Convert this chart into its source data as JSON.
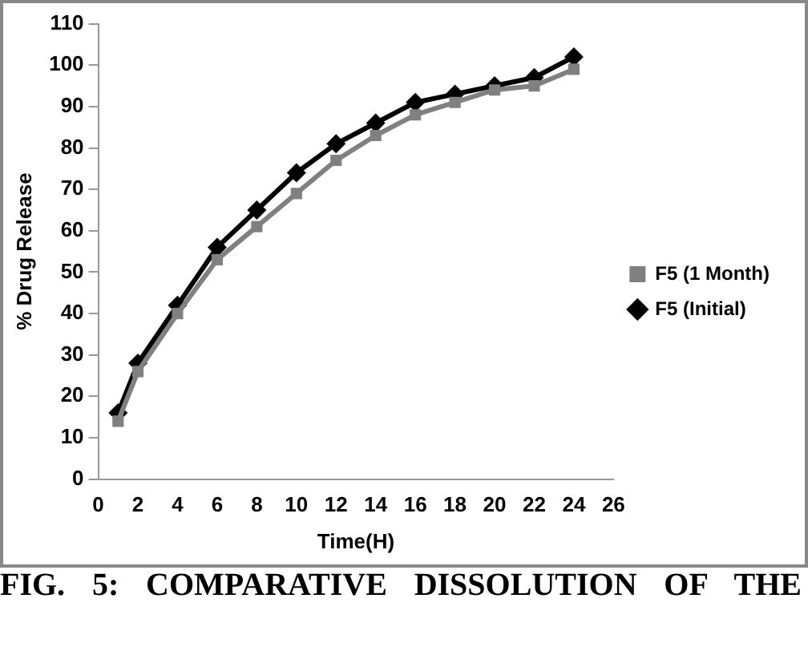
{
  "chart_data": {
    "type": "line",
    "xlabel": "Time(H)",
    "ylabel": "% Drug Release",
    "x": [
      1,
      2,
      4,
      6,
      8,
      10,
      12,
      14,
      16,
      18,
      20,
      22,
      24
    ],
    "series": [
      {
        "name": "F5 (Initial)",
        "color": "#000000",
        "marker": "diamond",
        "values": [
          16,
          28,
          42,
          56,
          65,
          74,
          81,
          86,
          91,
          93,
          95,
          97,
          102
        ]
      },
      {
        "name": "F5 (1 Month)",
        "color": "#808080",
        "marker": "square",
        "values": [
          14,
          26,
          40,
          53,
          61,
          69,
          77,
          83,
          88,
          91,
          94,
          95,
          99
        ]
      }
    ],
    "xlim": [
      0,
      26
    ],
    "xticks": [
      0,
      2,
      4,
      6,
      8,
      10,
      12,
      14,
      16,
      18,
      20,
      22,
      24,
      26
    ],
    "ylim": [
      0,
      110
    ],
    "yticks": [
      0,
      10,
      20,
      30,
      40,
      50,
      60,
      70,
      80,
      90,
      100,
      110
    ],
    "grid": false,
    "legend": "right",
    "line_style": "solid",
    "annotations": [
      "FIG. 5: COMPARATIVE DISSOLUTION OF THE"
    ]
  }
}
